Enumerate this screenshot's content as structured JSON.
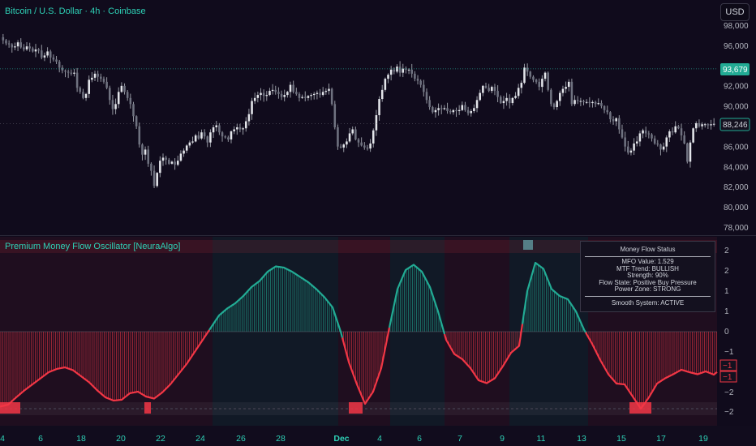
{
  "chart_header": {
    "symbol_title": "Bitcoin / U.S. Dollar · 4h · Coinbase",
    "currency_button": "USD"
  },
  "indicator": {
    "title": "Premium Money Flow Oscillator [NeuraAlgo]"
  },
  "status_panel": {
    "title": "Money Flow Status",
    "lines": [
      "MFO Value: 1.529",
      "MTF Trend: BULLISH",
      "Strength:  90%",
      "Flow State: Positive Buy Pressure",
      "Power Zone: STRONG"
    ],
    "footer": "Smooth System: ACTIVE"
  },
  "colors": {
    "bull": "#22ab94",
    "bear": "#f23645",
    "accent": "#2ed1b6",
    "candle": "#b2b5be"
  },
  "x_axis": {
    "labels": [
      "4",
      "6",
      "18",
      "20",
      "22",
      "24",
      "26",
      "28",
      "Dec",
      "4",
      "6",
      "7",
      "9",
      "11",
      "13",
      "15",
      "17",
      "19"
    ]
  },
  "chart_data": [
    {
      "type": "candlestick",
      "title": "Bitcoin / U.S. Dollar · 4h · Coinbase",
      "y_ticks": [
        "98,000",
        "96,000",
        "94,000",
        "92,000",
        "90,000",
        "88,000",
        "86,000",
        "84,000",
        "82,000",
        "80,000",
        "78,000"
      ],
      "ylim": [
        77600,
        99800
      ],
      "current_price_label": "88,246",
      "highlight_level_label": "93,679",
      "closes": [
        96500,
        96200,
        96100,
        95800,
        95900,
        96300,
        95800,
        95600,
        95900,
        95700,
        95400,
        95600,
        95500,
        94800,
        95000,
        95400,
        94800,
        94600,
        94400,
        93800,
        93500,
        93400,
        93300,
        93200,
        93300,
        91800,
        91400,
        90800,
        91200,
        92600,
        92800,
        93200,
        92900,
        92700,
        92400,
        91800,
        90600,
        89700,
        90200,
        91400,
        92000,
        91400,
        90800,
        90200,
        89000,
        88000,
        86200,
        85200,
        85700,
        84300,
        83600,
        82100,
        83400,
        84600,
        84900,
        84700,
        84300,
        84500,
        84200,
        84600,
        85300,
        85600,
        86100,
        86400,
        86500,
        87100,
        86800,
        87400,
        87000,
        86400,
        87400,
        87900,
        88100,
        87400,
        87000,
        86900,
        86700,
        87500,
        87700,
        87900,
        87700,
        87800,
        88500,
        89200,
        90500,
        90800,
        91100,
        91300,
        91000,
        91100,
        91500,
        91600,
        91400,
        91200,
        90900,
        91100,
        91400,
        92100,
        91400,
        91200,
        90800,
        90900,
        90800,
        91000,
        91100,
        91200,
        91300,
        91100,
        91400,
        91500,
        91700,
        90200,
        87900,
        86000,
        85900,
        86200,
        86500,
        87300,
        87700,
        86700,
        86400,
        86100,
        85900,
        85800,
        86300,
        87600,
        89100,
        90700,
        91600,
        92700,
        93100,
        93600,
        93400,
        93900,
        93300,
        93700,
        93600,
        93600,
        93200,
        92700,
        92500,
        92100,
        91400,
        90600,
        89900,
        89400,
        89600,
        89800,
        89700,
        89800,
        89500,
        89400,
        89600,
        89500,
        89600,
        90100,
        89600,
        89300,
        89500,
        89800,
        90600,
        91300,
        92000,
        91800,
        91500,
        91900,
        91500,
        90900,
        90300,
        90500,
        90800,
        90300,
        90800,
        91000,
        91800,
        92300,
        93800,
        93400,
        92900,
        92600,
        92400,
        91900,
        92700,
        93300,
        91600,
        90200,
        89900,
        90500,
        91300,
        91700,
        91900,
        92400,
        90200,
        90600,
        90500,
        90500,
        90400,
        90400,
        90300,
        90400,
        90200,
        90300,
        90000,
        89600,
        89400,
        88700,
        88500,
        88800,
        87700,
        86900,
        86000,
        85400,
        85600,
        86300,
        86500,
        87300,
        87600,
        87300,
        87200,
        86800,
        86300,
        86200,
        85700,
        86000,
        86900,
        87500,
        87400,
        88000,
        87800,
        87100,
        86300,
        84500,
        86400,
        87800,
        88300,
        88000,
        88200,
        88200,
        88100,
        88200,
        88246
      ]
    },
    {
      "type": "area",
      "title": "Premium Money Flow Oscillator [NeuraAlgo]",
      "y_ticks": [
        "2",
        "2",
        "1",
        "1",
        "0",
        "−1",
        "−1",
        "−1",
        "−2",
        "−2"
      ],
      "ylim": [
        -2.2,
        2.55
      ],
      "marker_labels": [
        "−1",
        "−1"
      ],
      "overbought_level": 2.2,
      "oversold_level": -1.9,
      "x": [
        0,
        10,
        20,
        30,
        40,
        50,
        60,
        70,
        80,
        90,
        100,
        110,
        120,
        130,
        140,
        150,
        160,
        170,
        180,
        190,
        200,
        210,
        220,
        230,
        240,
        250,
        260,
        270,
        280,
        290,
        300,
        310,
        320,
        330,
        340,
        350,
        360,
        370,
        380,
        390,
        400,
        410,
        420,
        430,
        440,
        450,
        460,
        470,
        480,
        490,
        500,
        510,
        520,
        530,
        540,
        550,
        560,
        570,
        580,
        590,
        600,
        610,
        620,
        630,
        640,
        650,
        660,
        670,
        680,
        690,
        700,
        710,
        720,
        730,
        740,
        750,
        760,
        770,
        780,
        790,
        800,
        810,
        820,
        830,
        840,
        850,
        860,
        870,
        880,
        890
      ],
      "values": [
        -1.85,
        -1.8,
        -1.62,
        -1.45,
        -1.3,
        -1.15,
        -1.0,
        -0.92,
        -0.88,
        -0.95,
        -1.1,
        -1.25,
        -1.45,
        -1.62,
        -1.7,
        -1.68,
        -1.52,
        -1.48,
        -1.6,
        -1.65,
        -1.5,
        -1.3,
        -1.05,
        -0.8,
        -0.5,
        -0.2,
        0.1,
        0.4,
        0.57,
        0.7,
        0.88,
        1.1,
        1.25,
        1.48,
        1.61,
        1.58,
        1.48,
        1.35,
        1.22,
        1.05,
        0.85,
        0.6,
        0.0,
        -0.75,
        -1.3,
        -1.78,
        -1.48,
        -0.9,
        0.1,
        1.05,
        1.52,
        1.65,
        1.48,
        1.1,
        0.5,
        -0.2,
        -0.55,
        -0.68,
        -0.9,
        -1.2,
        -1.27,
        -1.15,
        -0.85,
        -0.52,
        -0.35,
        1.0,
        1.7,
        1.55,
        1.05,
        0.88,
        0.8,
        0.5,
        0.05,
        -0.3,
        -0.7,
        -1.05,
        -1.28,
        -1.3,
        -1.6,
        -1.9,
        -1.62,
        -1.28,
        -1.15,
        -1.05,
        -0.94,
        -1.0,
        -1.05,
        -0.98,
        -1.06,
        -0.9
      ]
    }
  ]
}
